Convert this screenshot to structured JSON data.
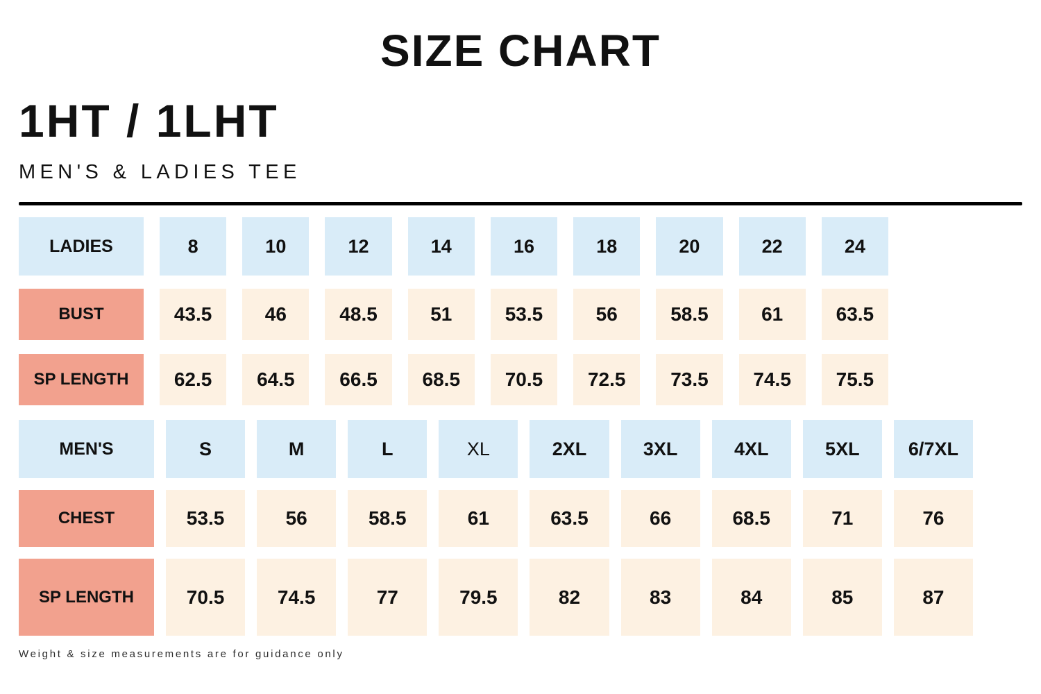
{
  "page": {
    "title": "SIZE CHART",
    "product_code": "1HT / 1LHT",
    "subtitle": "MEN'S & LADIES TEE",
    "footnote": "Weight & size measurements are for guidance only"
  },
  "colors": {
    "header_cell_bg": "#d9ecf8",
    "label_cell_bg": "#f2a18e",
    "value_cell_bg": "#fdf1e2",
    "rule": "#000000",
    "text": "#111111"
  },
  "tables": {
    "ladies": {
      "header": {
        "label": "LADIES",
        "sizes": [
          "8",
          "10",
          "12",
          "14",
          "16",
          "18",
          "20",
          "22",
          "24"
        ]
      },
      "rows": [
        {
          "label": "BUST",
          "values": [
            "43.5",
            "46",
            "48.5",
            "51",
            "53.5",
            "56",
            "58.5",
            "61",
            "63.5"
          ]
        },
        {
          "label": "SP LENGTH",
          "values": [
            "62.5",
            "64.5",
            "66.5",
            "68.5",
            "70.5",
            "72.5",
            "73.5",
            "74.5",
            "75.5"
          ]
        }
      ]
    },
    "mens": {
      "header": {
        "label": "MEN'S",
        "sizes": [
          "S",
          "M",
          "L",
          "XL",
          "2XL",
          "3XL",
          "4XL",
          "5XL",
          "6/7XL"
        ]
      },
      "rows": [
        {
          "label": "CHEST",
          "values": [
            "53.5",
            "56",
            "58.5",
            "61",
            "63.5",
            "66",
            "68.5",
            "71",
            "76"
          ]
        },
        {
          "label": "SP LENGTH",
          "values": [
            "70.5",
            "74.5",
            "77",
            "79.5",
            "82",
            "83",
            "84",
            "85",
            "87"
          ]
        }
      ]
    }
  }
}
